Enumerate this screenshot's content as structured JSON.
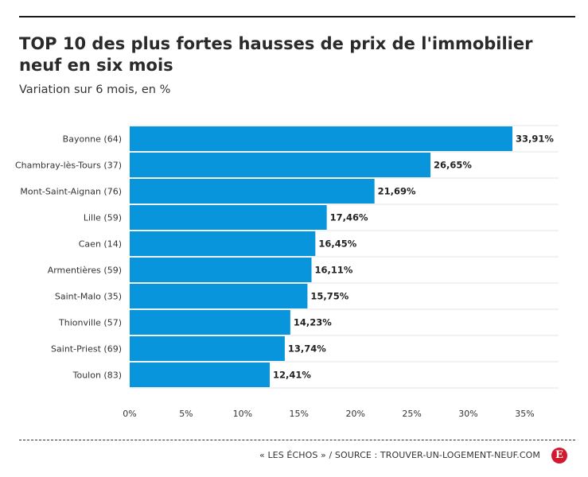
{
  "header": {
    "title": "TOP 10 des plus fortes hausses de prix de l'immobilier neuf en six mois",
    "subtitle": "Variation sur 6 mois, en %"
  },
  "footer": {
    "source": "« LES ÉCHOS » / SOURCE : TROUVER-UN-LOGEMENT-NEUF.COM",
    "logo_letter": "E"
  },
  "colors": {
    "bar": "#0895db",
    "grid": "#e6e6e6",
    "logo": "#d0192d"
  },
  "chart_data": {
    "type": "bar",
    "orientation": "horizontal",
    "title": "TOP 10 des plus fortes hausses de prix de l'immobilier neuf en six mois",
    "subtitle": "Variation sur 6 mois, en %",
    "categories": [
      "Bayonne (64)",
      "Chambray-lès-Tours (37)",
      "Mont-Saint-Aignan (76)",
      "Lille (59)",
      "Caen (14)",
      "Armentières (59)",
      "Saint-Malo (35)",
      "Thionville (57)",
      "Saint-Priest (69)",
      "Toulon (83)"
    ],
    "values": [
      33.91,
      26.65,
      21.69,
      17.46,
      16.45,
      16.11,
      15.75,
      14.23,
      13.74,
      12.41
    ],
    "value_labels": [
      "33,91%",
      "26,65%",
      "21,69%",
      "17,46%",
      "16,45%",
      "16,11%",
      "15,75%",
      "14,23%",
      "13,74%",
      "12,41%"
    ],
    "xlim": [
      0,
      38
    ],
    "x_ticks": [
      0,
      5,
      10,
      15,
      20,
      25,
      30,
      35
    ],
    "x_tick_labels": [
      "0%",
      "5%",
      "10%",
      "15%",
      "20%",
      "25%",
      "30%",
      "35%"
    ],
    "grid": true,
    "legend": "none"
  }
}
